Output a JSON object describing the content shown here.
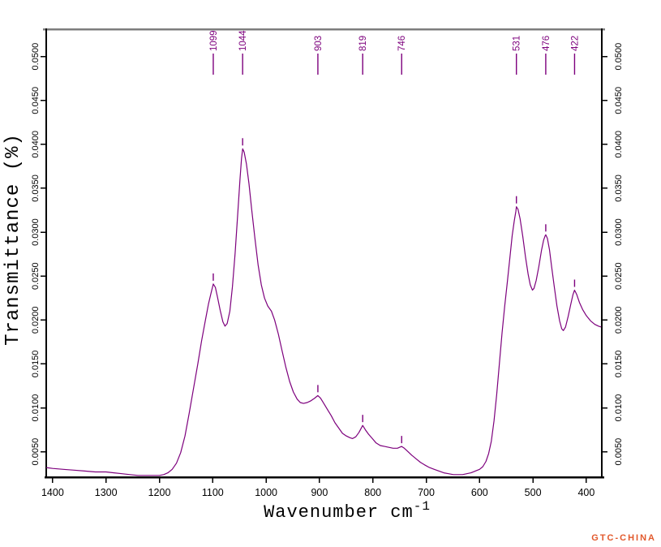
{
  "chart_data": {
    "type": "line",
    "title": "",
    "xlabel": "Wavenumber cm⁻¹",
    "xlabel_base": "Wavenumber cm",
    "xlabel_superscript": "-1",
    "ylabel": "Transmittance (%)",
    "x_axis": {
      "left_value": 1412,
      "right_value": 371,
      "tick_values": [
        1400,
        1300,
        1200,
        1100,
        1000,
        900,
        800,
        700,
        600,
        500,
        400
      ],
      "tick_labels": [
        "1400",
        "1300",
        "1200",
        "1100",
        "1000",
        "900",
        "800",
        "700",
        "600",
        "500",
        "400"
      ]
    },
    "y_axis": {
      "bottom_value": 0.0021,
      "top_value": 0.0532,
      "tick_values": [
        0.005,
        0.01,
        0.015,
        0.02,
        0.025,
        0.03,
        0.035,
        0.04,
        0.045,
        0.05
      ],
      "tick_labels": [
        "0.0050",
        "0.0100",
        "0.0150",
        "0.0200",
        "0.0250",
        "0.0300",
        "0.0350",
        "0.0400",
        "0.0450",
        "0.0500"
      ]
    },
    "grid": false,
    "legend": false,
    "line_color": "#7d007d",
    "peak_label_color": "#7d007d",
    "axis_color": "#000000",
    "frame_top_color": "#7d7d7d",
    "peaks": [
      {
        "label": "1099",
        "wavenumber": 1099,
        "transmittance": 0.0241
      },
      {
        "label": "1044",
        "wavenumber": 1044,
        "transmittance": 0.0395
      },
      {
        "label": "903",
        "wavenumber": 903,
        "transmittance": 0.0114
      },
      {
        "label": "819",
        "wavenumber": 819,
        "transmittance": 0.008
      },
      {
        "label": "746",
        "wavenumber": 746,
        "transmittance": 0.0056
      },
      {
        "label": "531",
        "wavenumber": 531,
        "transmittance": 0.0329
      },
      {
        "label": "476",
        "wavenumber": 476,
        "transmittance": 0.0297
      },
      {
        "label": "422",
        "wavenumber": 422,
        "transmittance": 0.0234
      }
    ],
    "series": [
      {
        "name": "spectrum",
        "points": [
          [
            1412,
            0.0032
          ],
          [
            1400,
            0.0031
          ],
          [
            1380,
            0.003
          ],
          [
            1360,
            0.0029
          ],
          [
            1340,
            0.0028
          ],
          [
            1320,
            0.0027
          ],
          [
            1300,
            0.0027
          ],
          [
            1285,
            0.0026
          ],
          [
            1270,
            0.0025
          ],
          [
            1255,
            0.0024
          ],
          [
            1240,
            0.0023
          ],
          [
            1225,
            0.0023
          ],
          [
            1212,
            0.0023
          ],
          [
            1200,
            0.0023
          ],
          [
            1192,
            0.0024
          ],
          [
            1184,
            0.0026
          ],
          [
            1176,
            0.003
          ],
          [
            1168,
            0.0037
          ],
          [
            1160,
            0.0049
          ],
          [
            1152,
            0.0068
          ],
          [
            1144,
            0.0094
          ],
          [
            1136,
            0.0122
          ],
          [
            1128,
            0.015
          ],
          [
            1121,
            0.0176
          ],
          [
            1114,
            0.0199
          ],
          [
            1108,
            0.0218
          ],
          [
            1103,
            0.0231
          ],
          [
            1099,
            0.0241
          ],
          [
            1095,
            0.0237
          ],
          [
            1091,
            0.0226
          ],
          [
            1086,
            0.0211
          ],
          [
            1081,
            0.0198
          ],
          [
            1077,
            0.0193
          ],
          [
            1073,
            0.0196
          ],
          [
            1068,
            0.021
          ],
          [
            1063,
            0.0238
          ],
          [
            1058,
            0.0276
          ],
          [
            1053,
            0.0322
          ],
          [
            1049,
            0.036
          ],
          [
            1046,
            0.0384
          ],
          [
            1044,
            0.0395
          ],
          [
            1041,
            0.0391
          ],
          [
            1037,
            0.0378
          ],
          [
            1032,
            0.0355
          ],
          [
            1027,
            0.0326
          ],
          [
            1021,
            0.0293
          ],
          [
            1015,
            0.0263
          ],
          [
            1009,
            0.024
          ],
          [
            1003,
            0.0225
          ],
          [
            997,
            0.0216
          ],
          [
            990,
            0.021
          ],
          [
            984,
            0.02
          ],
          [
            977,
            0.0184
          ],
          [
            970,
            0.0165
          ],
          [
            963,
            0.0146
          ],
          [
            956,
            0.013
          ],
          [
            949,
            0.0118
          ],
          [
            942,
            0.011
          ],
          [
            936,
            0.0106
          ],
          [
            930,
            0.0105
          ],
          [
            923,
            0.0106
          ],
          [
            916,
            0.0108
          ],
          [
            909,
            0.0111
          ],
          [
            903,
            0.0114
          ],
          [
            898,
            0.0111
          ],
          [
            892,
            0.0105
          ],
          [
            885,
            0.0098
          ],
          [
            878,
            0.0091
          ],
          [
            871,
            0.0083
          ],
          [
            864,
            0.0077
          ],
          [
            857,
            0.0071
          ],
          [
            850,
            0.0068
          ],
          [
            843,
            0.0066
          ],
          [
            838,
            0.0065
          ],
          [
            832,
            0.0067
          ],
          [
            826,
            0.0072
          ],
          [
            819,
            0.008
          ],
          [
            814,
            0.0075
          ],
          [
            808,
            0.007
          ],
          [
            801,
            0.0065
          ],
          [
            794,
            0.006
          ],
          [
            786,
            0.0057
          ],
          [
            778,
            0.0056
          ],
          [
            770,
            0.0055
          ],
          [
            762,
            0.0054
          ],
          [
            754,
            0.0054
          ],
          [
            746,
            0.0056
          ],
          [
            741,
            0.0054
          ],
          [
            734,
            0.005
          ],
          [
            727,
            0.0046
          ],
          [
            719,
            0.0042
          ],
          [
            711,
            0.0038
          ],
          [
            703,
            0.0035
          ],
          [
            694,
            0.0032
          ],
          [
            685,
            0.003
          ],
          [
            676,
            0.0028
          ],
          [
            667,
            0.0026
          ],
          [
            658,
            0.0025
          ],
          [
            649,
            0.0024
          ],
          [
            640,
            0.0024
          ],
          [
            632,
            0.0024
          ],
          [
            624,
            0.0025
          ],
          [
            616,
            0.0026
          ],
          [
            608,
            0.0028
          ],
          [
            600,
            0.003
          ],
          [
            594,
            0.0033
          ],
          [
            588,
            0.0039
          ],
          [
            583,
            0.0048
          ],
          [
            578,
            0.0062
          ],
          [
            573,
            0.0085
          ],
          [
            568,
            0.0115
          ],
          [
            563,
            0.015
          ],
          [
            558,
            0.0185
          ],
          [
            553,
            0.0215
          ],
          [
            548,
            0.0243
          ],
          [
            543,
            0.0272
          ],
          [
            539,
            0.0296
          ],
          [
            535,
            0.0313
          ],
          [
            532,
            0.0324
          ],
          [
            531,
            0.0329
          ],
          [
            528,
            0.0326
          ],
          [
            524,
            0.0315
          ],
          [
            519,
            0.0295
          ],
          [
            514,
            0.0272
          ],
          [
            509,
            0.0252
          ],
          [
            505,
            0.024
          ],
          [
            501,
            0.0234
          ],
          [
            498,
            0.0236
          ],
          [
            494,
            0.0245
          ],
          [
            489,
            0.0261
          ],
          [
            484,
            0.0279
          ],
          [
            480,
            0.0291
          ],
          [
            477,
            0.0296
          ],
          [
            476,
            0.0297
          ],
          [
            473,
            0.0293
          ],
          [
            469,
            0.028
          ],
          [
            465,
            0.0261
          ],
          [
            460,
            0.0238
          ],
          [
            455,
            0.0216
          ],
          [
            450,
            0.0199
          ],
          [
            446,
            0.019
          ],
          [
            443,
            0.0188
          ],
          [
            439,
            0.0192
          ],
          [
            434,
            0.0204
          ],
          [
            429,
            0.0218
          ],
          [
            425,
            0.0229
          ],
          [
            422,
            0.0234
          ],
          [
            418,
            0.0229
          ],
          [
            413,
            0.022
          ],
          [
            407,
            0.0212
          ],
          [
            400,
            0.0205
          ],
          [
            392,
            0.0199
          ],
          [
            384,
            0.0195
          ],
          [
            377,
            0.0193
          ],
          [
            372,
            0.0192
          ]
        ]
      }
    ]
  },
  "watermark": {
    "text": "GTC-CHINA",
    "color": "#e2592c"
  }
}
